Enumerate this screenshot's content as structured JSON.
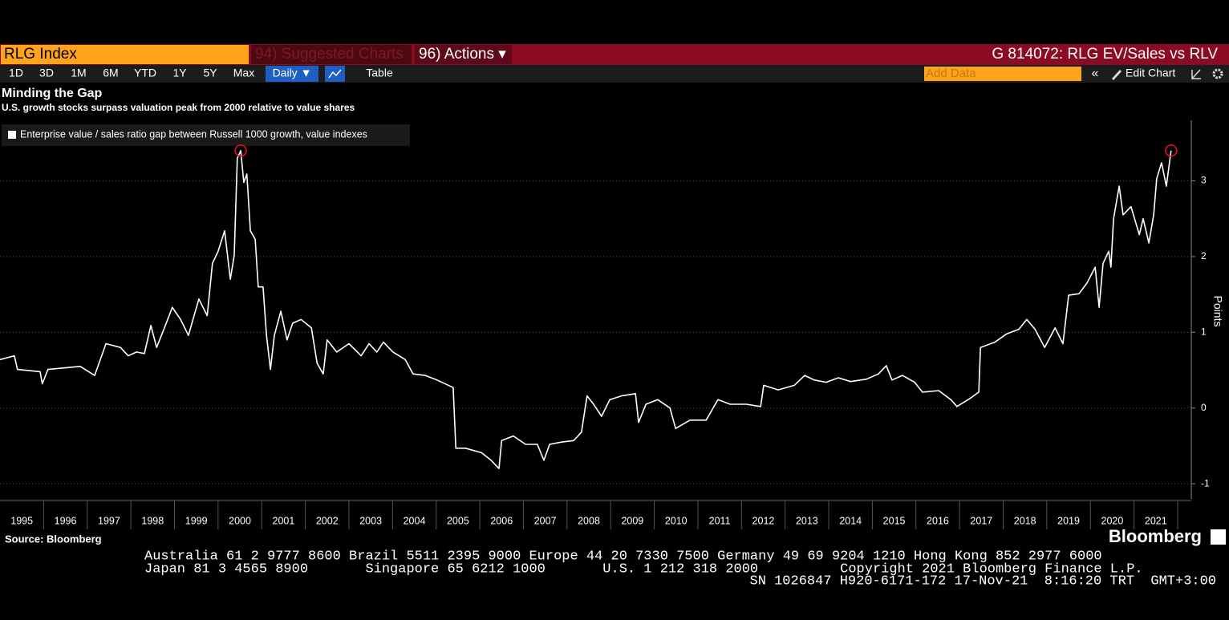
{
  "toolbar": {
    "security": "RLG Index",
    "suggested": "94) Suggested Charts",
    "actions": "96) Actions ▾",
    "chart_id": "G 814072: RLG EV/Sales vs RLV",
    "ranges": [
      "1D",
      "3D",
      "1M",
      "6M",
      "YTD",
      "1Y",
      "5Y",
      "Max"
    ],
    "frequency": "Daily ▼",
    "table": "Table",
    "add_data": "Add Data",
    "edit_chart": "Edit Chart"
  },
  "chart_data": {
    "type": "line",
    "title": "Minding the Gap",
    "subtitle": "U.S. growth stocks surpass valuation peak from 2000 relative to value shares",
    "y_axis_label": "Points",
    "source": "Source: Bloomberg",
    "x": [
      1995.0,
      1995.33,
      1995.4,
      1995.92,
      1995.97,
      1996.1,
      1996.47,
      1996.84,
      1997.17,
      1997.43,
      1997.76,
      1997.94,
      1998.13,
      1998.31,
      1998.46,
      1998.59,
      1998.77,
      1998.95,
      1999.14,
      1999.32,
      1999.56,
      1999.75,
      1999.87,
      2000.0,
      2000.15,
      2000.28,
      2000.37,
      2000.44,
      2000.52,
      2000.59,
      2000.66,
      2000.74,
      2000.85,
      2000.92,
      2001.03,
      2001.11,
      2001.2,
      2001.29,
      2001.44,
      2001.58,
      2001.71,
      2001.9,
      2002.14,
      2002.27,
      2002.41,
      2002.5,
      2002.72,
      2003.0,
      2003.28,
      2003.46,
      2003.64,
      2003.79,
      2004.01,
      2004.29,
      2004.47,
      2004.75,
      2005.02,
      2005.39,
      2005.45,
      2005.67,
      2006.04,
      2006.26,
      2006.44,
      2006.5,
      2006.77,
      2007.05,
      2007.32,
      2007.47,
      2007.6,
      2007.87,
      2008.15,
      2008.33,
      2008.46,
      2008.61,
      2008.79,
      2008.98,
      2009.25,
      2009.57,
      2009.64,
      2009.81,
      2010.08,
      2010.36,
      2010.49,
      2010.82,
      2011.19,
      2011.46,
      2011.74,
      2012.11,
      2012.44,
      2012.51,
      2012.84,
      2013.21,
      2013.45,
      2013.67,
      2013.94,
      2014.22,
      2014.5,
      2014.86,
      2015.14,
      2015.32,
      2015.45,
      2015.69,
      2015.97,
      2016.15,
      2016.52,
      2016.8,
      2016.94,
      2017.25,
      2017.44,
      2017.48,
      2017.81,
      2018.08,
      2018.36,
      2018.54,
      2018.73,
      2018.95,
      2019.19,
      2019.37,
      2019.5,
      2019.74,
      2019.92,
      2020.11,
      2020.2,
      2020.29,
      2020.42,
      2020.47,
      2020.53,
      2020.66,
      2020.75,
      2020.93,
      2021.12,
      2021.21,
      2021.34,
      2021.45,
      2021.52,
      2021.63,
      2021.74,
      2021.85
    ],
    "series": [
      {
        "name": "Enterprise value / sales ratio gap between Russell 1000 growth, value indexes",
        "color": "#ffffff",
        "values": [
          0.64,
          0.69,
          0.51,
          0.48,
          0.32,
          0.51,
          0.53,
          0.55,
          0.43,
          0.85,
          0.8,
          0.69,
          0.74,
          0.72,
          1.09,
          0.8,
          1.06,
          1.33,
          1.17,
          0.96,
          1.44,
          1.22,
          1.91,
          2.07,
          2.34,
          1.7,
          2.02,
          3.3,
          3.4,
          2.98,
          3.09,
          2.34,
          2.23,
          1.6,
          1.6,
          0.96,
          0.51,
          0.96,
          1.28,
          0.9,
          1.12,
          1.17,
          1.06,
          0.59,
          0.45,
          0.9,
          0.74,
          0.85,
          0.69,
          0.85,
          0.74,
          0.87,
          0.74,
          0.64,
          0.45,
          0.43,
          0.37,
          0.27,
          -0.53,
          -0.53,
          -0.59,
          -0.69,
          -0.8,
          -0.43,
          -0.37,
          -0.48,
          -0.48,
          -0.69,
          -0.48,
          -0.45,
          -0.43,
          -0.32,
          0.16,
          0.05,
          -0.11,
          0.11,
          0.16,
          0.19,
          -0.19,
          0.05,
          0.11,
          0,
          -0.27,
          -0.16,
          -0.16,
          0.11,
          0.05,
          0.05,
          0.02,
          0.3,
          0.24,
          0.3,
          0.43,
          0.37,
          0.34,
          0.4,
          0.35,
          0.38,
          0.45,
          0.56,
          0.37,
          0.43,
          0.34,
          0.21,
          0.23,
          0.11,
          0.02,
          0.13,
          0.21,
          0.8,
          0.87,
          0.98,
          1.04,
          1.17,
          1.04,
          0.8,
          1.06,
          0.85,
          1.49,
          1.51,
          1.65,
          1.86,
          1.33,
          1.91,
          2.07,
          1.86,
          2.5,
          2.93,
          2.55,
          2.66,
          2.29,
          2.5,
          2.18,
          2.55,
          3.03,
          3.24,
          2.93,
          3.4
        ]
      }
    ],
    "xlim": [
      1995,
      2022
    ],
    "xticks": [
      1995,
      1996,
      1997,
      1998,
      1999,
      2000,
      2001,
      2002,
      2003,
      2004,
      2005,
      2006,
      2007,
      2008,
      2009,
      2010,
      2011,
      2012,
      2013,
      2014,
      2015,
      2016,
      2017,
      2018,
      2019,
      2020,
      2021
    ],
    "ylim": [
      -1.2,
      3.8
    ],
    "yticks": [
      -1,
      0,
      1,
      2,
      3
    ],
    "grid": true,
    "highlight_color": "#e0141e"
  },
  "branding": "Bloomberg",
  "footer": [
    "Australia 61 2 9777 8600 Brazil 5511 2395 9000 Europe 44 20 7330 7500 Germany 49 69 9204 1210 Hong Kong 852 2977 6000",
    "Japan 81 3 4565 8900       Singapore 65 6212 1000       U.S. 1 212 318 2000          Copyright 2021 Bloomberg Finance L.P.",
    "SN 1026847 H920-6171-172 17-Nov-21  8:16:20 TRT  GMT+3:00"
  ]
}
